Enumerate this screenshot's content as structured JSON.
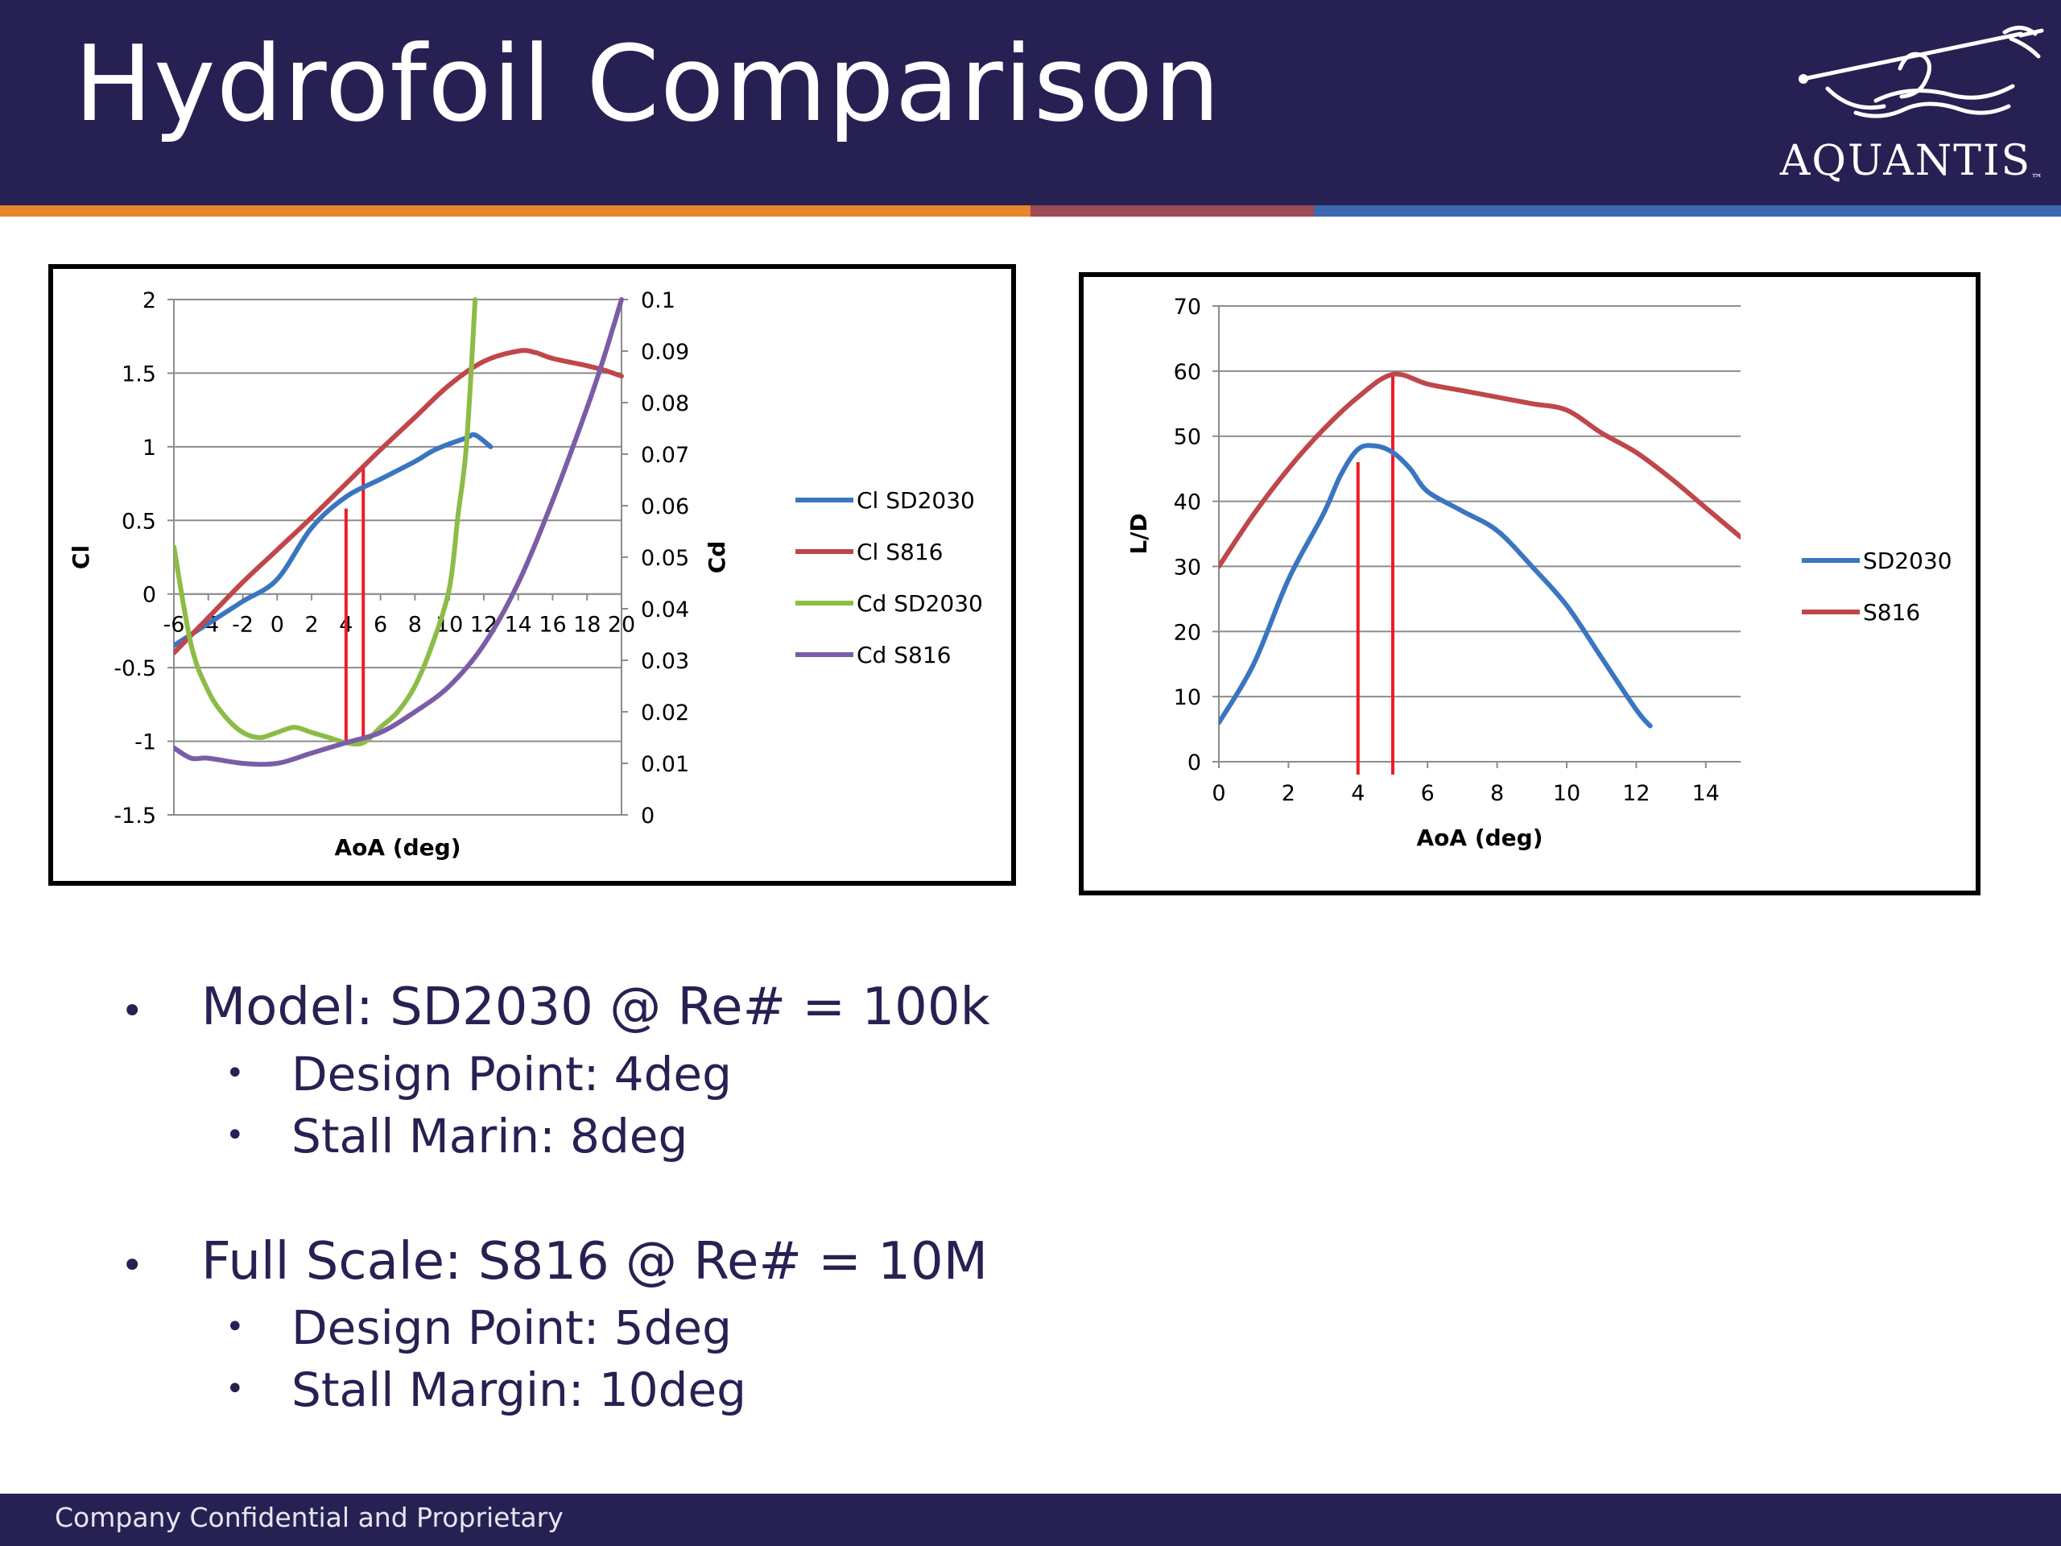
{
  "header": {
    "title": "Hydrofoil Comparison",
    "logo_text": "AQUANTIS",
    "logo_tm": "™",
    "background_color": "#272153"
  },
  "stripes": [
    "#e8862b",
    "#9b4a56",
    "#3d68b0"
  ],
  "chart_data": [
    {
      "type": "line",
      "xlabel": "AoA (deg)",
      "ylabel": "Cl",
      "y2label": "Cd",
      "xlim": [
        -6,
        20
      ],
      "ylim": [
        -1.5,
        2
      ],
      "y2lim": [
        0,
        0.1
      ],
      "x_ticks": [
        "-6",
        "-4",
        "-2",
        "0",
        "2",
        "4",
        "6",
        "8",
        "10",
        "12",
        "14",
        "16",
        "18",
        "20"
      ],
      "y_ticks": [
        "2",
        "1.5",
        "1",
        "0.5",
        "0",
        "-0.5",
        "-1",
        "-1.5"
      ],
      "y2_ticks": [
        "0.1",
        "0.09",
        "0.08",
        "0.07",
        "0.06",
        "0.05",
        "0.04",
        "0.03",
        "0.02",
        "0.01",
        "0"
      ],
      "grid": true,
      "legend_position": "right",
      "series": [
        {
          "name": "Cl SD2030",
          "axis": "left",
          "color": "#3a76c0",
          "x": [
            -6,
            -4,
            -2,
            0,
            2,
            4,
            6,
            8,
            9,
            10,
            11,
            11.5,
            12.4
          ],
          "y": [
            -0.35,
            -0.2,
            -0.05,
            0.1,
            0.45,
            0.66,
            0.78,
            0.9,
            0.97,
            1.02,
            1.06,
            1.08,
            1.0
          ]
        },
        {
          "name": "Cl S816",
          "axis": "left",
          "color": "#c0464a",
          "x": [
            -6,
            -4,
            -2,
            0,
            2,
            4,
            6,
            8,
            10,
            12,
            14,
            15,
            16,
            18,
            19,
            20
          ],
          "y": [
            -0.4,
            -0.16,
            0.08,
            0.3,
            0.52,
            0.75,
            0.98,
            1.2,
            1.42,
            1.58,
            1.65,
            1.64,
            1.6,
            1.55,
            1.52,
            1.48
          ]
        },
        {
          "name": "Cd SD2030",
          "axis": "right",
          "color": "#8cbc46",
          "x": [
            -6,
            -5,
            -4,
            -3,
            -2,
            -1,
            0,
            1,
            2,
            3,
            4,
            5,
            6,
            7,
            8,
            9,
            10,
            10.5,
            11,
            11.5
          ],
          "y": [
            0.052,
            0.033,
            0.024,
            0.019,
            0.016,
            0.015,
            0.016,
            0.017,
            0.016,
            0.015,
            0.014,
            0.014,
            0.017,
            0.02,
            0.025,
            0.033,
            0.044,
            0.058,
            0.072,
            0.1
          ]
        },
        {
          "name": "Cd S816",
          "axis": "right",
          "color": "#7b5ca7",
          "x": [
            -6,
            -5,
            -4,
            -2,
            0,
            2,
            4,
            6,
            8,
            10,
            12,
            14,
            16,
            18,
            19,
            20
          ],
          "y": [
            0.013,
            0.011,
            0.011,
            0.01,
            0.01,
            0.012,
            0.014,
            0.016,
            0.02,
            0.025,
            0.033,
            0.045,
            0.061,
            0.079,
            0.089,
            0.1
          ]
        }
      ],
      "markers": [
        {
          "x": 4,
          "y": 0.58,
          "color": "#ee1c24"
        },
        {
          "x": 5,
          "y": 0.88,
          "color": "#ee1c24"
        }
      ]
    },
    {
      "type": "line",
      "xlabel": "AoA (deg)",
      "ylabel": "L/D",
      "xlim": [
        0,
        15
      ],
      "ylim": [
        0,
        70
      ],
      "x_ticks": [
        "0",
        "2",
        "4",
        "6",
        "8",
        "10",
        "12",
        "14"
      ],
      "y_ticks": [
        "70",
        "60",
        "50",
        "40",
        "30",
        "20",
        "10",
        "0"
      ],
      "grid": true,
      "legend_position": "right",
      "series": [
        {
          "name": "SD2030",
          "color": "#3a76c0",
          "x": [
            0,
            1,
            2,
            3,
            3.5,
            4,
            4.5,
            5,
            5.5,
            6,
            7,
            8,
            9,
            10,
            11,
            12,
            12.4
          ],
          "y": [
            6,
            15,
            28,
            38,
            44,
            48,
            48.5,
            47.5,
            45,
            41.5,
            38.5,
            35.5,
            30,
            24,
            16,
            8,
            5.5
          ]
        },
        {
          "name": "S816",
          "color": "#c0464a",
          "x": [
            0,
            1,
            2,
            3,
            4,
            5,
            6,
            7,
            8,
            9,
            10,
            11,
            12,
            13,
            14,
            15
          ],
          "y": [
            30,
            38,
            45,
            51,
            56,
            59.5,
            58,
            57,
            56,
            55,
            54,
            50.5,
            47.5,
            43.5,
            39,
            34.5
          ]
        }
      ],
      "markers": [
        {
          "x": 4,
          "y": 46,
          "color": "#ee1c24"
        },
        {
          "x": 5,
          "y": 59.5,
          "color": "#ee1c24"
        }
      ]
    }
  ],
  "bullets": [
    {
      "text": "Model: SD2030 @ Re# = 100k",
      "subs": [
        "Design Point: 4deg",
        "Stall Marin: 8deg"
      ]
    },
    {
      "text": "Full Scale: S816 @ Re# = 10M",
      "subs": [
        "Design Point: 5deg",
        "Stall Margin: 10deg"
      ]
    }
  ],
  "bullet_glyph": "•",
  "footer": {
    "text": "Company Confidential and Proprietary"
  }
}
